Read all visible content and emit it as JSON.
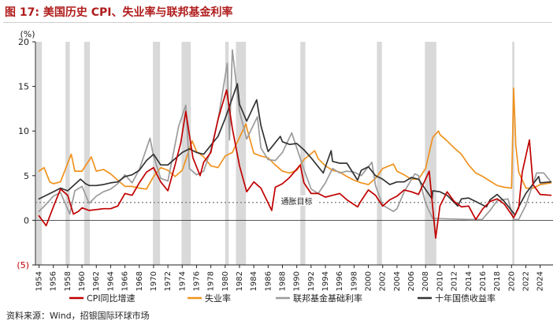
{
  "title": "图 17: 美国历史 CPI、失业率与联邦基金利率",
  "source": "资料来源：Wind，招银国际环球市场",
  "chart_data": {
    "type": "line",
    "y_unit_label": "(%)",
    "ylim": [
      -5,
      20
    ],
    "y_ticks": [
      -5,
      0,
      5,
      10,
      15,
      20
    ],
    "y_tick_labels": [
      "(5)",
      "0",
      "5",
      "10",
      "15",
      "20"
    ],
    "xlim": [
      1953.5,
      2025.8
    ],
    "x_ticks": [
      1954,
      1956,
      1958,
      1960,
      1962,
      1964,
      1966,
      1968,
      1970,
      1972,
      1974,
      1976,
      1978,
      1980,
      1982,
      1984,
      1986,
      1988,
      1990,
      1992,
      1994,
      1996,
      1998,
      2000,
      2002,
      2004,
      2006,
      2008,
      2010,
      2012,
      2014,
      2016,
      2018,
      2020,
      2022,
      2024
    ],
    "x_tick_labels": [
      "1954",
      "1956",
      "1958",
      "1960",
      "1962",
      "1964",
      "1966",
      "1968",
      "1970",
      "1972",
      "1974",
      "1976",
      "1978",
      "1980",
      "1982",
      "1984",
      "1986",
      "1988",
      "1990",
      "1992",
      "1994",
      "1996",
      "1998",
      "2000",
      "2002",
      "2004",
      "2006",
      "2008",
      "2010",
      "2012",
      "2014",
      "2016",
      "2018",
      "2020",
      "2022",
      "2024"
    ],
    "grid": false,
    "legend_position": "bottom",
    "recessions": [
      [
        1953.6,
        1954.4
      ],
      [
        1957.7,
        1958.3
      ],
      [
        1960.3,
        1961.1
      ],
      [
        1969.9,
        1970.9
      ],
      [
        1973.9,
        1975.2
      ],
      [
        1980.0,
        1980.5
      ],
      [
        1981.5,
        1982.9
      ],
      [
        1990.5,
        1991.2
      ],
      [
        2001.2,
        2001.9
      ],
      [
        2007.9,
        2009.5
      ],
      [
        2020.1,
        2020.4
      ]
    ],
    "reference_line": {
      "value": 2,
      "label": "通胀目标",
      "label_x": 1990
    },
    "series": [
      {
        "name": "CPI同比增速",
        "color": "#c00000",
        "x": [
          1954,
          1955,
          1956,
          1957,
          1958,
          1958.8,
          1959.5,
          1960,
          1961,
          1962,
          1963,
          1964,
          1965,
          1966,
          1967,
          1968,
          1969,
          1970,
          1971,
          1972,
          1973,
          1973.8,
          1974.5,
          1975.5,
          1976.5,
          1977,
          1978,
          1979,
          1980.2,
          1981,
          1982,
          1983,
          1984,
          1985,
          1986.5,
          1987,
          1988,
          1989,
          1990.5,
          1991,
          1992,
          1993,
          1994,
          1995,
          1996,
          1997,
          1998.5,
          1999,
          2000,
          2001,
          2002,
          2003,
          2004,
          2005,
          2006,
          2007,
          2008.5,
          2009.4,
          2010,
          2011,
          2012,
          2013,
          2014,
          2015,
          2016,
          2017,
          2018,
          2019,
          2020.3,
          2021,
          2021.5,
          2022.5,
          2023,
          2024,
          2025.5
        ],
        "y": [
          0.5,
          -0.6,
          1.5,
          3.5,
          2.8,
          0.7,
          1.0,
          1.4,
          1.1,
          1.2,
          1.3,
          1.3,
          1.6,
          3.0,
          2.8,
          4.2,
          5.4,
          5.9,
          4.3,
          3.3,
          6.2,
          8.7,
          12.2,
          7.0,
          5.0,
          6.5,
          7.6,
          11.3,
          14.6,
          10.3,
          6.1,
          3.2,
          4.3,
          3.6,
          1.1,
          3.7,
          4.1,
          4.8,
          6.2,
          4.2,
          3.0,
          3.0,
          2.6,
          2.8,
          3.0,
          2.3,
          1.5,
          2.2,
          3.4,
          2.8,
          1.6,
          2.3,
          2.7,
          3.4,
          3.2,
          2.9,
          5.5,
          -2.0,
          1.6,
          3.2,
          2.1,
          1.5,
          1.6,
          0.1,
          1.3,
          2.1,
          2.4,
          1.8,
          0.3,
          1.4,
          5.4,
          9.0,
          4.0,
          2.9,
          2.8
        ]
      },
      {
        "name": "失业率",
        "color": "#f0921e",
        "x": [
          1954,
          1954.7,
          1955.5,
          1956,
          1957,
          1958.5,
          1959,
          1960,
          1961.3,
          1962,
          1963,
          1964,
          1965,
          1966,
          1967,
          1968,
          1969,
          1970,
          1971,
          1972,
          1973,
          1974,
          1975.4,
          1976,
          1977,
          1978,
          1979,
          1980,
          1981,
          1982.9,
          1983,
          1984,
          1985,
          1986,
          1987,
          1988,
          1989,
          1990,
          1991,
          1992.5,
          1993,
          1994,
          1995,
          1996,
          1997,
          1998,
          1999,
          2000,
          2001,
          2002,
          2003.5,
          2004,
          2005,
          2006,
          2007,
          2008,
          2009,
          2009.8,
          2010,
          2011,
          2012,
          2013,
          2014,
          2015,
          2016,
          2017,
          2018,
          2019,
          2020,
          2020.3,
          2020.6,
          2021,
          2022,
          2023,
          2024,
          2025.5
        ],
        "y": [
          5.5,
          5.9,
          4.3,
          4.1,
          4.3,
          7.4,
          5.5,
          5.5,
          7.1,
          5.5,
          5.7,
          5.2,
          4.5,
          3.8,
          3.8,
          3.6,
          3.5,
          4.9,
          5.9,
          5.6,
          4.9,
          5.6,
          8.9,
          7.7,
          7.1,
          6.1,
          5.9,
          7.2,
          7.6,
          10.8,
          10.4,
          7.5,
          7.2,
          7.0,
          6.2,
          5.5,
          5.3,
          5.6,
          6.8,
          7.8,
          6.9,
          6.1,
          5.6,
          5.4,
          4.9,
          4.5,
          4.2,
          4.0,
          4.7,
          5.8,
          6.3,
          5.5,
          5.1,
          4.6,
          4.6,
          5.8,
          9.3,
          10.0,
          9.6,
          8.9,
          8.1,
          7.4,
          6.2,
          5.3,
          4.9,
          4.4,
          3.9,
          3.7,
          3.6,
          14.8,
          8.4,
          5.4,
          3.6,
          3.6,
          4.0,
          4.2
        ]
      },
      {
        "name": "联邦基金基础利率",
        "color": "#9b9b9b",
        "x": [
          1954,
          1955,
          1956,
          1957,
          1958.3,
          1959,
          1960,
          1961,
          1962,
          1963,
          1964,
          1965,
          1966,
          1967,
          1968,
          1969.5,
          1970,
          1971,
          1972,
          1973.5,
          1974.5,
          1975,
          1976,
          1977,
          1978,
          1979,
          1980.3,
          1980.6,
          1981,
          1982,
          1983,
          1984.5,
          1985,
          1986,
          1987,
          1988,
          1989.3,
          1990,
          1991,
          1992,
          1993,
          1994,
          1995,
          1996,
          1997,
          1998,
          1999,
          2000.5,
          2001,
          2002,
          2003.5,
          2004,
          2005,
          2006.5,
          2007,
          2008,
          2009,
          2014,
          2015.9,
          2017,
          2018,
          2019.5,
          2020.3,
          2021,
          2022,
          2023.5,
          2024.5,
          2025.5
        ],
        "y": [
          1.0,
          1.8,
          2.7,
          3.1,
          0.7,
          3.3,
          3.8,
          1.9,
          2.7,
          3.2,
          3.5,
          4.1,
          5.1,
          4.2,
          5.7,
          9.2,
          7.2,
          4.7,
          4.4,
          10.5,
          12.9,
          5.8,
          5.1,
          5.5,
          7.9,
          11.2,
          17.6,
          9.0,
          19.1,
          12.2,
          9.1,
          11.6,
          8.1,
          6.8,
          6.7,
          7.6,
          9.8,
          8.1,
          5.7,
          3.5,
          3.0,
          4.2,
          5.8,
          5.3,
          5.5,
          5.4,
          5.0,
          6.5,
          3.9,
          1.7,
          1.0,
          1.3,
          3.2,
          5.2,
          5.0,
          1.9,
          0.2,
          0.1,
          0.1,
          1.1,
          2.2,
          2.4,
          0.1,
          0.1,
          1.7,
          5.3,
          5.3,
          4.3
        ]
      },
      {
        "name": "十年国债收益率",
        "color": "#333333",
        "x": [
          1954,
          1955,
          1956,
          1957,
          1958,
          1959.8,
          1960.5,
          1961,
          1962,
          1963,
          1964,
          1965,
          1966,
          1967,
          1968,
          1969,
          1970,
          1971,
          1972,
          1973,
          1974,
          1975,
          1976,
          1977,
          1978,
          1979,
          1980,
          1981.7,
          1982,
          1983,
          1984.4,
          1985,
          1986,
          1987.7,
          1988,
          1989,
          1990,
          1991,
          1992,
          1993.7,
          1994.8,
          1995,
          1996,
          1997,
          1998.5,
          1999,
          2000,
          2001,
          2002,
          2003,
          2004,
          2005,
          2006,
          2007,
          2008.9,
          2009,
          2010,
          2011,
          2012.5,
          2013,
          2014,
          2015,
          2016.5,
          2017,
          2018,
          2019,
          2020.5,
          2021,
          2022,
          2023.8,
          2024,
          2025.5
        ],
        "y": [
          2.4,
          2.8,
          3.2,
          3.6,
          3.3,
          4.6,
          4.1,
          3.9,
          3.9,
          4.0,
          4.2,
          4.3,
          4.9,
          5.1,
          5.6,
          6.7,
          7.4,
          6.2,
          6.2,
          6.9,
          7.6,
          8.0,
          7.6,
          7.4,
          8.4,
          9.4,
          11.4,
          15.3,
          13.0,
          11.1,
          13.5,
          10.6,
          7.7,
          9.4,
          8.8,
          8.5,
          8.6,
          7.9,
          7.0,
          5.3,
          7.8,
          6.6,
          6.4,
          6.4,
          4.5,
          5.6,
          6.0,
          5.0,
          4.6,
          4.0,
          4.3,
          4.3,
          4.8,
          4.6,
          2.4,
          3.3,
          3.2,
          2.8,
          1.6,
          2.4,
          2.5,
          2.1,
          1.5,
          2.3,
          2.9,
          2.1,
          0.6,
          1.5,
          3.0,
          4.9,
          4.2,
          4.3
        ]
      }
    ]
  }
}
